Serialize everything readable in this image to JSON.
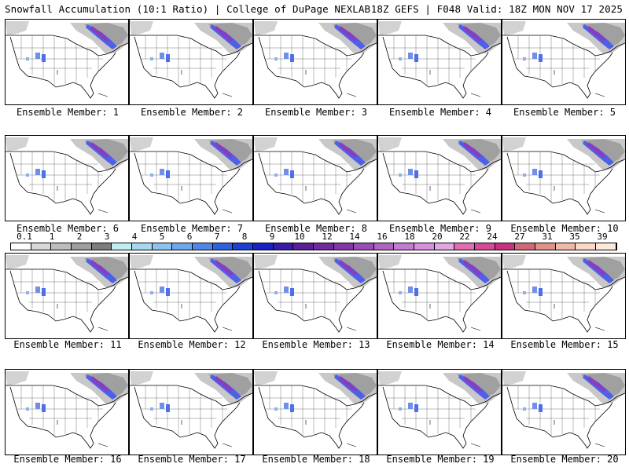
{
  "header": {
    "left": "Snowfall Accumulation (10:1 Ratio) | College of DuPage NEXLAB",
    "right": "18Z GEFS | F048 Valid: 18Z MON NOV 17 2025"
  },
  "caption_prefix": "Ensemble Member: ",
  "members": [
    {
      "id": "1",
      "caption": "Ensemble Member: 1"
    },
    {
      "id": "2",
      "caption": "Ensemble Member: 2"
    },
    {
      "id": "3",
      "caption": "Ensemble Member: 3"
    },
    {
      "id": "4",
      "caption": "Ensemble Member: 4"
    },
    {
      "id": "5",
      "caption": "Ensemble Member: 5"
    },
    {
      "id": "6",
      "caption": "Ensemble Member: 6"
    },
    {
      "id": "7",
      "caption": "Ensemble Member: 7"
    },
    {
      "id": "8",
      "caption": "Ensemble Member: 8"
    },
    {
      "id": "9",
      "caption": "Ensemble Member: 9"
    },
    {
      "id": "10",
      "caption": "Ensemble Member: 10"
    },
    {
      "id": "11",
      "caption": "Ensemble Member: 11"
    },
    {
      "id": "12",
      "caption": "Ensemble Member: 12"
    },
    {
      "id": "13",
      "caption": "Ensemble Member: 13"
    },
    {
      "id": "14",
      "caption": "Ensemble Member: 14"
    },
    {
      "id": "15",
      "caption": "Ensemble Member: 15"
    },
    {
      "id": "16",
      "caption": "Ensemble Member: 16"
    },
    {
      "id": "17",
      "caption": "Ensemble Member: 17"
    },
    {
      "id": "18",
      "caption": "Ensemble Member: 18"
    },
    {
      "id": "19",
      "caption": "Ensemble Member: 19"
    },
    {
      "id": "20",
      "caption": "Ensemble Member: 20"
    }
  ],
  "color_scale": {
    "labels": [
      "0.1",
      "1",
      "2",
      "3",
      "4",
      "5",
      "6",
      "7",
      "8",
      "9",
      "10",
      "12",
      "14",
      "16",
      "18",
      "20",
      "22",
      "24",
      "27",
      "31",
      "35",
      "39"
    ],
    "colors": [
      "#ffffff",
      "#d9d9d9",
      "#bdbdbd",
      "#9e9e9e",
      "#7d7d7d",
      "#bfeff0",
      "#a8d8f0",
      "#8cc2ee",
      "#6fa7ec",
      "#4f86e8",
      "#2f62e0",
      "#1c3fd6",
      "#1a22c4",
      "#3a1aa8",
      "#5a1e96",
      "#6e2a9e",
      "#8236a8",
      "#9a4cb6",
      "#b064c2",
      "#c47ad0",
      "#d690dc",
      "#e2a6e2",
      "#e36db0",
      "#d84a98",
      "#c93080",
      "#d06878",
      "#e0908a",
      "#f0b8a6",
      "#fbd7c6",
      "#fde8dc"
    ]
  }
}
